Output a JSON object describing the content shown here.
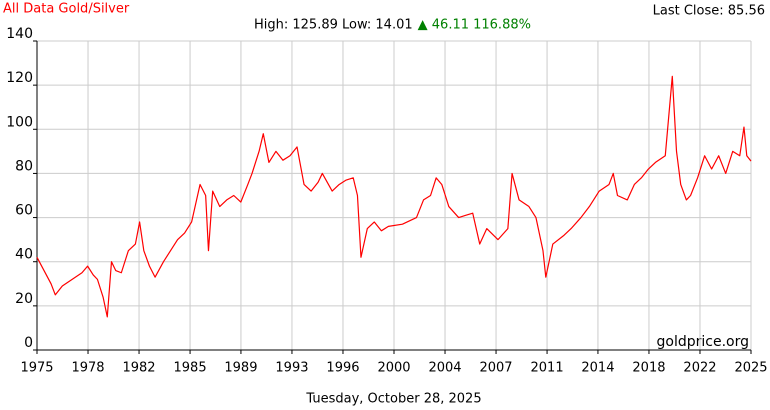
{
  "chart_data": {
    "type": "line",
    "title": "All Data Gold/Silver",
    "high_low": "High: 125.89 Low: 14.01",
    "change": "▲ 46.11 116.88%",
    "last_close": "Last Close: 85.56",
    "watermark": "goldprice.org",
    "date": "Tuesday, October 28, 2025",
    "color": "#ff0000",
    "change_color": "#008000",
    "grid": true,
    "xlim": [
      1975,
      2025.8
    ],
    "ylim": [
      0,
      140
    ],
    "yticks": [
      0,
      20,
      40,
      60,
      80,
      100,
      120,
      140
    ],
    "xticks": [
      {
        "value": 1975,
        "label": "1975"
      },
      {
        "value": 1978.63,
        "label": "1978"
      },
      {
        "value": 1982.26,
        "label": "1982"
      },
      {
        "value": 1985.89,
        "label": "1985"
      },
      {
        "value": 1989.51,
        "label": "1989"
      },
      {
        "value": 1993.14,
        "label": "1993"
      },
      {
        "value": 1996.77,
        "label": "1996"
      },
      {
        "value": 2000.4,
        "label": "2000"
      },
      {
        "value": 2004.03,
        "label": "2004"
      },
      {
        "value": 2007.66,
        "label": "2007"
      },
      {
        "value": 2011.29,
        "label": "2011"
      },
      {
        "value": 2014.91,
        "label": "2014"
      },
      {
        "value": 2018.54,
        "label": "2018"
      },
      {
        "value": 2022.17,
        "label": "2022"
      },
      {
        "value": 2025.8,
        "label": "2025"
      }
    ],
    "x": [
      1975,
      1975.5,
      1976,
      1976.3,
      1976.8,
      1977.5,
      1978.2,
      1978.6,
      1979.0,
      1979.3,
      1979.7,
      1980.0,
      1980.3,
      1980.6,
      1981.0,
      1981.5,
      1982.0,
      1982.3,
      1982.6,
      1983.0,
      1983.4,
      1984.0,
      1984.5,
      1985.0,
      1985.5,
      1986.0,
      1986.6,
      1987.0,
      1987.2,
      1987.5,
      1988.0,
      1988.5,
      1989.0,
      1989.5,
      1990.0,
      1990.3,
      1990.8,
      1991.1,
      1991.5,
      1992.0,
      1992.5,
      1993.0,
      1993.5,
      1994.0,
      1994.5,
      1995.0,
      1995.3,
      1996.0,
      1996.5,
      1997.0,
      1997.5,
      1997.8,
      1998.05,
      1998.5,
      1999.0,
      1999.5,
      2000.0,
      2001.0,
      2002.0,
      2002.5,
      2003.0,
      2003.4,
      2003.8,
      2004.3,
      2005.0,
      2005.5,
      2006.0,
      2006.5,
      2007.0,
      2007.8,
      2008.5,
      2008.8,
      2009.3,
      2010.0,
      2010.5,
      2011.0,
      2011.2,
      2011.7,
      2012.5,
      2013.0,
      2013.7,
      2014.3,
      2015.0,
      2015.7,
      2016.0,
      2016.3,
      2017.0,
      2017.5,
      2018.0,
      2018.5,
      2019.0,
      2019.7,
      2020.2,
      2020.5,
      2020.8,
      2021.2,
      2021.5,
      2022.0,
      2022.5,
      2023.0,
      2023.5,
      2024.0,
      2024.5,
      2025.0,
      2025.3,
      2025.5,
      2025.8
    ],
    "values": [
      42,
      36,
      30,
      25,
      29,
      32,
      35,
      38,
      34,
      32,
      24,
      15,
      40,
      36,
      35,
      45,
      48,
      58,
      45,
      38,
      33,
      40,
      45,
      50,
      53,
      58,
      75,
      70,
      45,
      72,
      65,
      68,
      70,
      67,
      75,
      80,
      90,
      98,
      85,
      90,
      86,
      88,
      92,
      75,
      72,
      76,
      80,
      72,
      75,
      77,
      78,
      70,
      42,
      55,
      58,
      54,
      56,
      57,
      60,
      68,
      70,
      78,
      75,
      65,
      60,
      61,
      62,
      48,
      55,
      50,
      55,
      80,
      68,
      65,
      60,
      45,
      33,
      48,
      52,
      55,
      60,
      65,
      72,
      75,
      80,
      70,
      68,
      75,
      78,
      82,
      85,
      88,
      124,
      90,
      75,
      68,
      70,
      78,
      88,
      82,
      88,
      80,
      90,
      88,
      101,
      88,
      85.56
    ]
  }
}
